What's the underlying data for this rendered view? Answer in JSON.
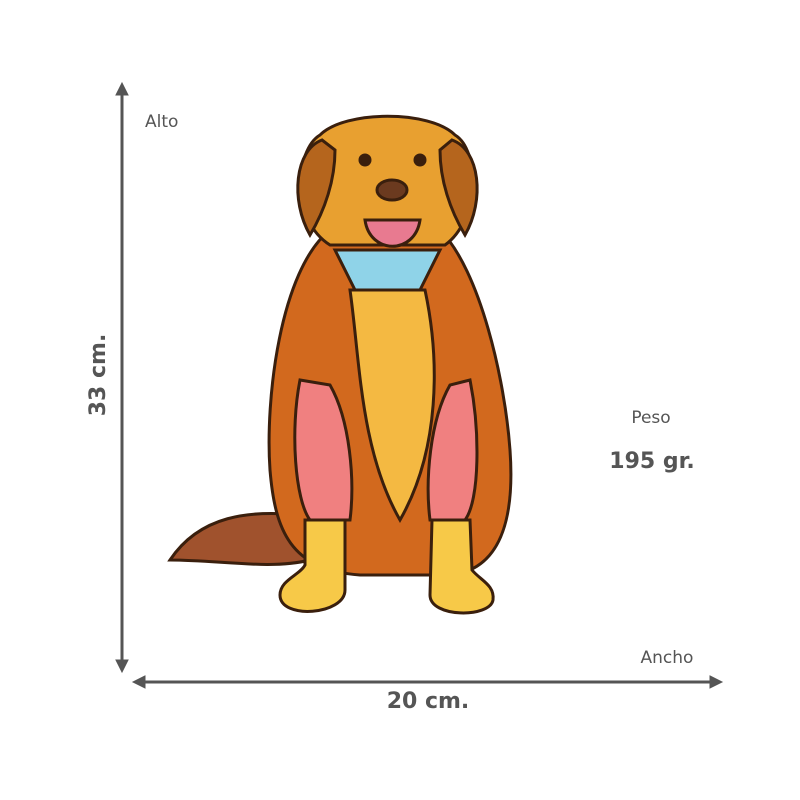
{
  "labels": {
    "height_label": "Alto",
    "height_value": "33 cm.",
    "weight_label": "Peso",
    "weight_value": "195 gr.",
    "width_label": "Ancho",
    "width_value": "20 cm."
  }
}
